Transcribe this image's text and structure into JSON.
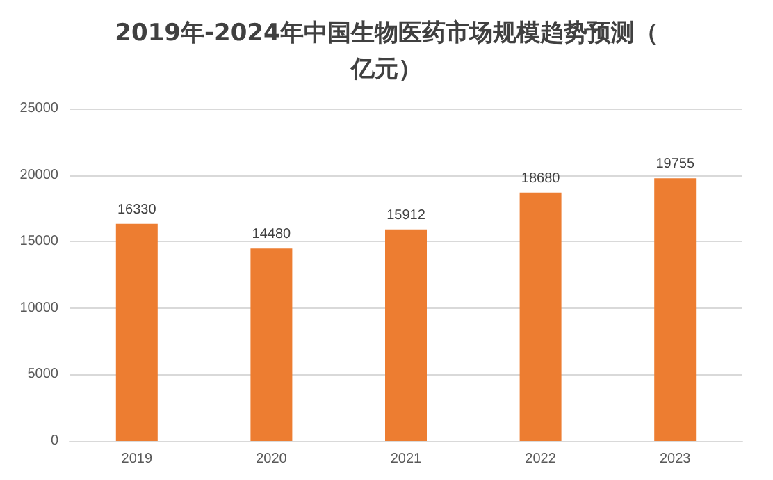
{
  "chart_data": {
    "type": "bar",
    "title": "2019年-2024年中国生物医药市场规模趋势预测（亿元）",
    "categories": [
      "2019",
      "2020",
      "2021",
      "2022",
      "2023"
    ],
    "values": [
      16330,
      14480,
      15912,
      18680,
      19755
    ],
    "color": "#ed7d31",
    "ylim": [
      0,
      25000
    ],
    "yticks": [
      0,
      5000,
      10000,
      15000,
      20000,
      25000
    ],
    "grid": "y",
    "data_labels": true
  }
}
